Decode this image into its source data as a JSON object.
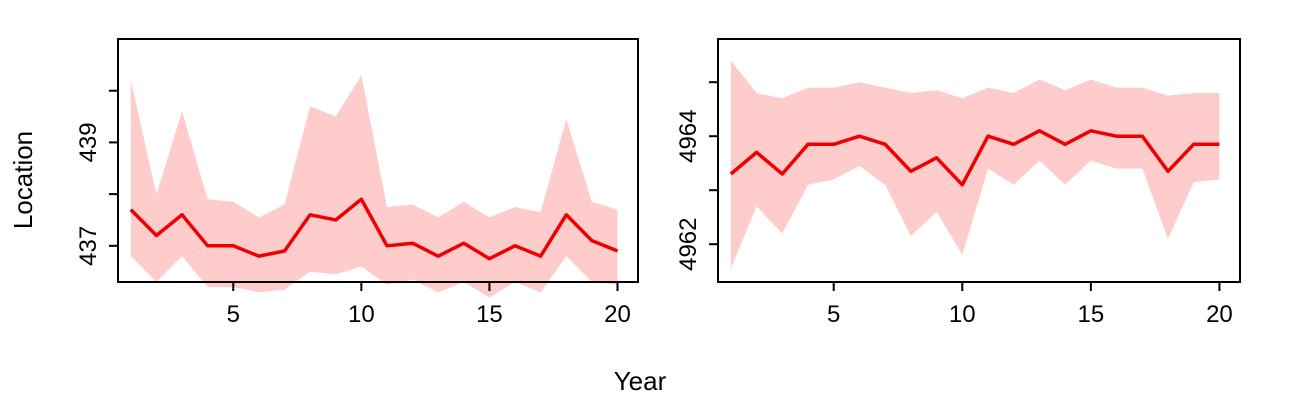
{
  "figure": {
    "xlabel": "Year",
    "ylabel": "Location"
  },
  "colors": {
    "line": "#ee0000",
    "band": "#ffcccc",
    "axis": "#000000"
  },
  "chart_data": [
    {
      "type": "line",
      "series_kind": "line-with-confidence-band",
      "x": [
        1,
        2,
        3,
        4,
        5,
        6,
        7,
        8,
        9,
        10,
        11,
        12,
        13,
        14,
        15,
        16,
        17,
        18,
        19,
        20
      ],
      "y": [
        437.7,
        437.2,
        437.6,
        437.0,
        437.0,
        436.8,
        436.9,
        437.6,
        437.5,
        437.9,
        437.0,
        437.05,
        436.8,
        437.05,
        436.75,
        437.0,
        436.8,
        437.6,
        437.1,
        436.9
      ],
      "upper": [
        440.2,
        438.0,
        439.6,
        437.9,
        437.85,
        437.55,
        437.8,
        439.7,
        439.5,
        440.3,
        437.75,
        437.8,
        437.55,
        437.85,
        437.55,
        437.75,
        437.65,
        439.45,
        437.85,
        437.7
      ],
      "lower": [
        436.8,
        436.3,
        436.8,
        436.2,
        436.2,
        436.1,
        436.15,
        436.5,
        436.45,
        436.6,
        436.25,
        436.35,
        436.1,
        436.3,
        436.0,
        436.3,
        436.1,
        436.8,
        436.3,
        436.25
      ],
      "xlim": [
        0.5,
        20.8
      ],
      "ylim": [
        436.3,
        441.0
      ],
      "xticks": [
        5,
        10,
        15,
        20
      ],
      "yticks_labeled": [
        437,
        439
      ],
      "yticks_minor": [
        438,
        440
      ],
      "grid": false
    },
    {
      "type": "line",
      "series_kind": "line-with-confidence-band",
      "x": [
        1,
        2,
        3,
        4,
        5,
        6,
        7,
        8,
        9,
        10,
        11,
        12,
        13,
        14,
        15,
        16,
        17,
        18,
        19,
        20
      ],
      "y": [
        4963.3,
        4963.7,
        4963.3,
        4963.85,
        4963.85,
        4964.0,
        4963.85,
        4963.35,
        4963.6,
        4963.1,
        4964.0,
        4963.85,
        4964.1,
        4963.85,
        4964.1,
        4964.0,
        4964.0,
        4963.35,
        4963.85,
        4963.85
      ],
      "upper": [
        4965.4,
        4964.8,
        4964.7,
        4964.9,
        4964.9,
        4965.0,
        4964.9,
        4964.8,
        4964.85,
        4964.7,
        4964.9,
        4964.8,
        4965.05,
        4964.85,
        4965.05,
        4964.9,
        4964.9,
        4964.75,
        4964.8,
        4964.8
      ],
      "lower": [
        4961.55,
        4962.7,
        4962.2,
        4963.1,
        4963.2,
        4963.45,
        4963.1,
        4962.15,
        4962.6,
        4961.8,
        4963.4,
        4963.1,
        4963.55,
        4963.1,
        4963.55,
        4963.4,
        4963.4,
        4962.1,
        4963.15,
        4963.2
      ],
      "xlim": [
        0.5,
        20.8
      ],
      "ylim": [
        4961.3,
        4965.8
      ],
      "xticks": [
        5,
        10,
        15,
        20
      ],
      "yticks_labeled": [
        4962,
        4964
      ],
      "yticks_minor": [
        4963,
        4965
      ],
      "grid": false
    }
  ]
}
